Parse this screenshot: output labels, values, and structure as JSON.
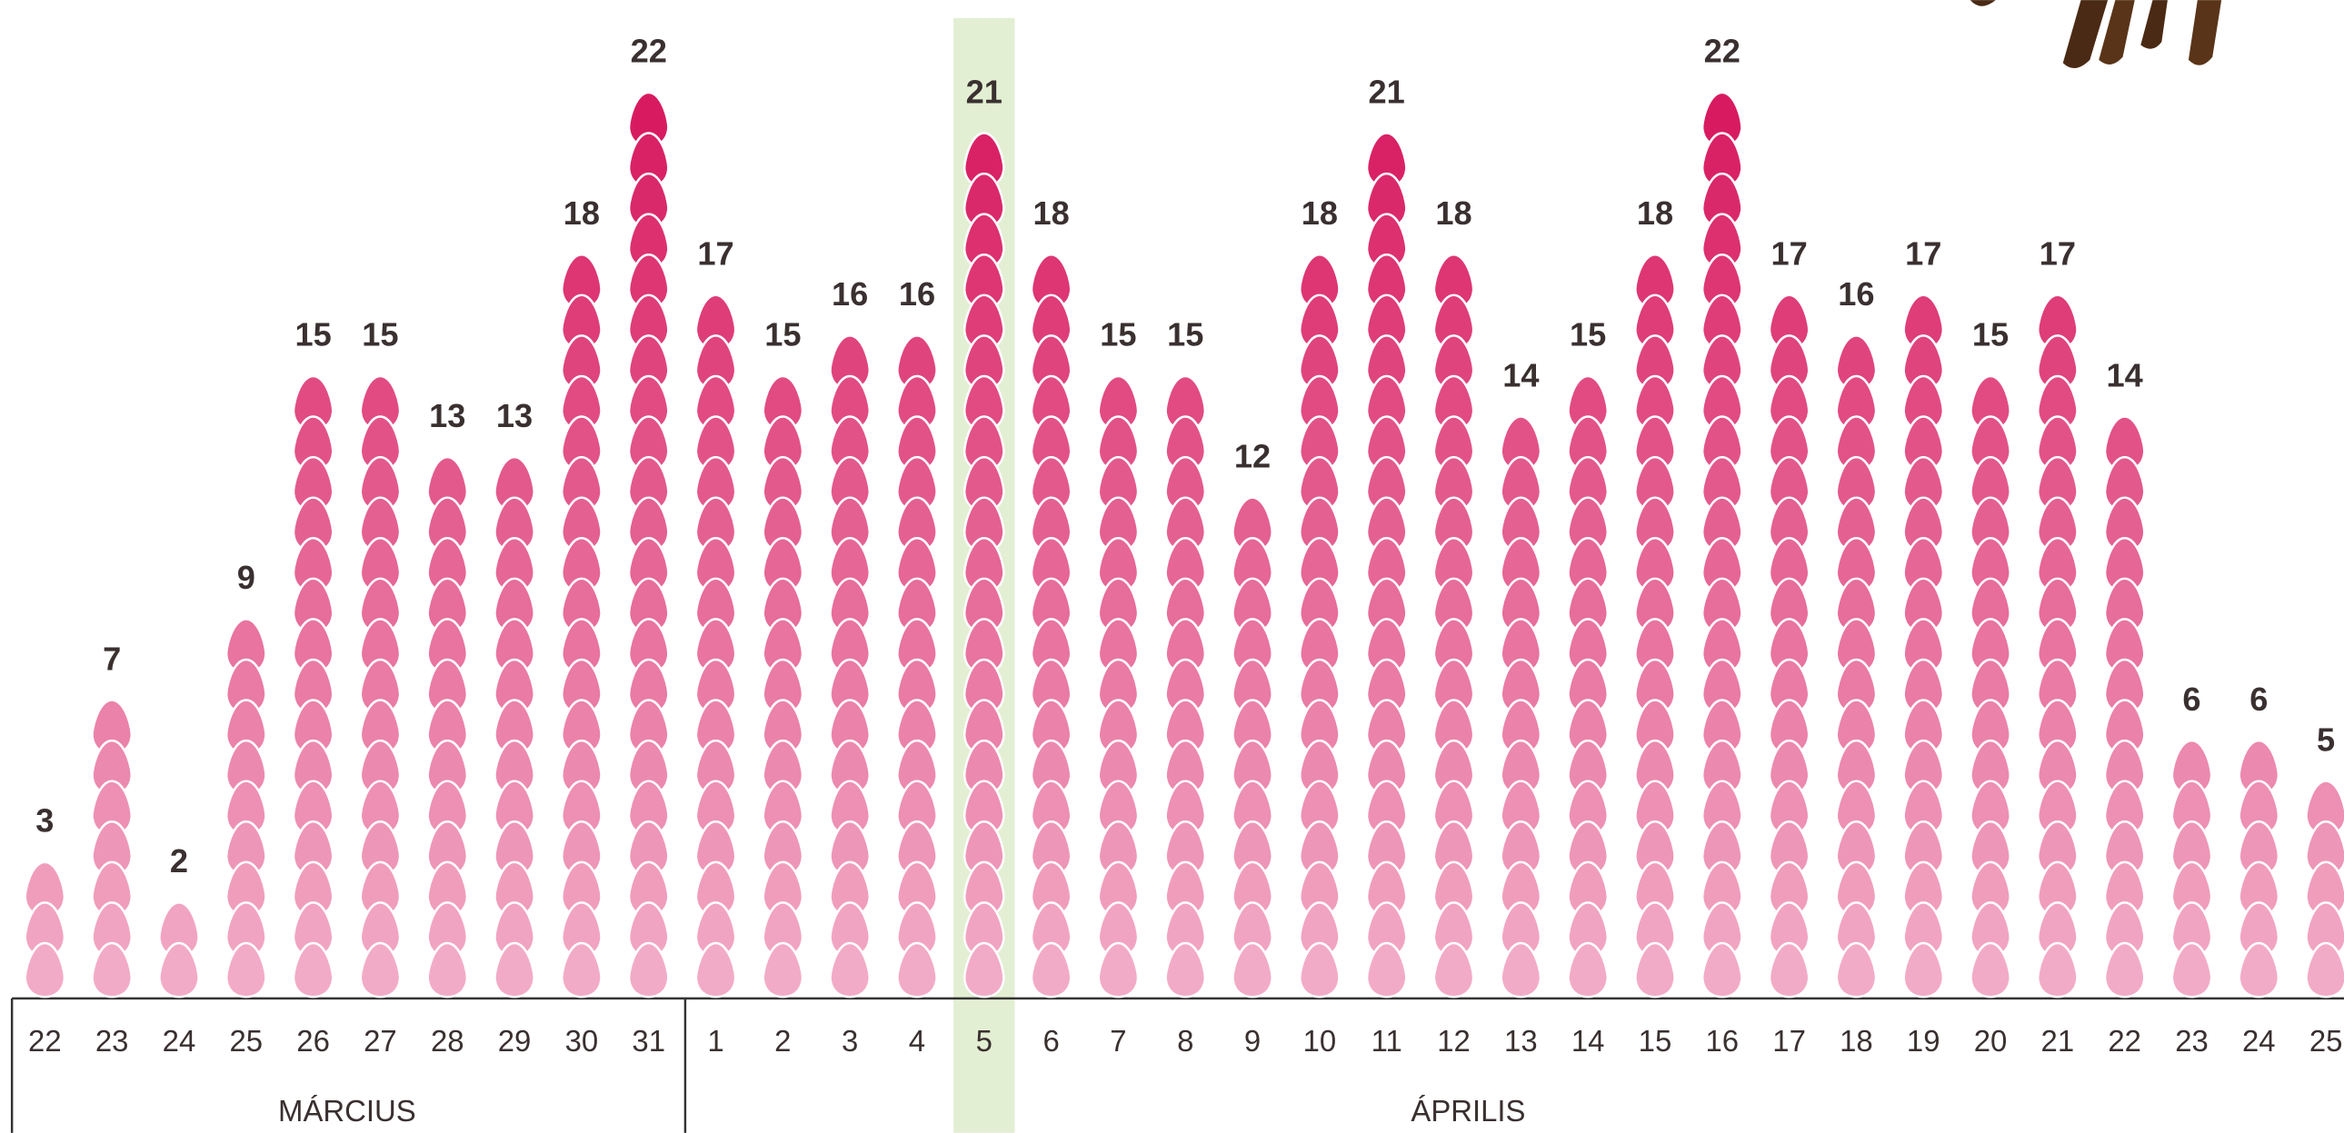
{
  "chart_data": {
    "type": "pictogram",
    "months": [
      {
        "name": "MÁRCIUS",
        "categories": [
          "22",
          "23",
          "24",
          "25",
          "26",
          "27",
          "28",
          "29",
          "30",
          "31"
        ],
        "values": [
          3,
          7,
          2,
          9,
          15,
          15,
          13,
          13,
          18,
          22
        ]
      },
      {
        "name": "ÁPRILIS",
        "categories": [
          "1",
          "2",
          "3",
          "4",
          "5",
          "6",
          "7",
          "8",
          "9",
          "10",
          "11",
          "12",
          "13",
          "14",
          "15",
          "16",
          "17",
          "18",
          "19",
          "20",
          "21",
          "22",
          "23",
          "24",
          "25"
        ],
        "values": [
          17,
          15,
          16,
          16,
          21,
          18,
          15,
          15,
          12,
          18,
          21,
          18,
          14,
          15,
          18,
          22,
          17,
          16,
          17,
          15,
          17,
          14,
          6,
          6,
          5
        ],
        "highlight": "5"
      }
    ],
    "color_low": "#f2abc6",
    "color_high": "#d81b60",
    "highlight_color": "#e3efd3"
  }
}
